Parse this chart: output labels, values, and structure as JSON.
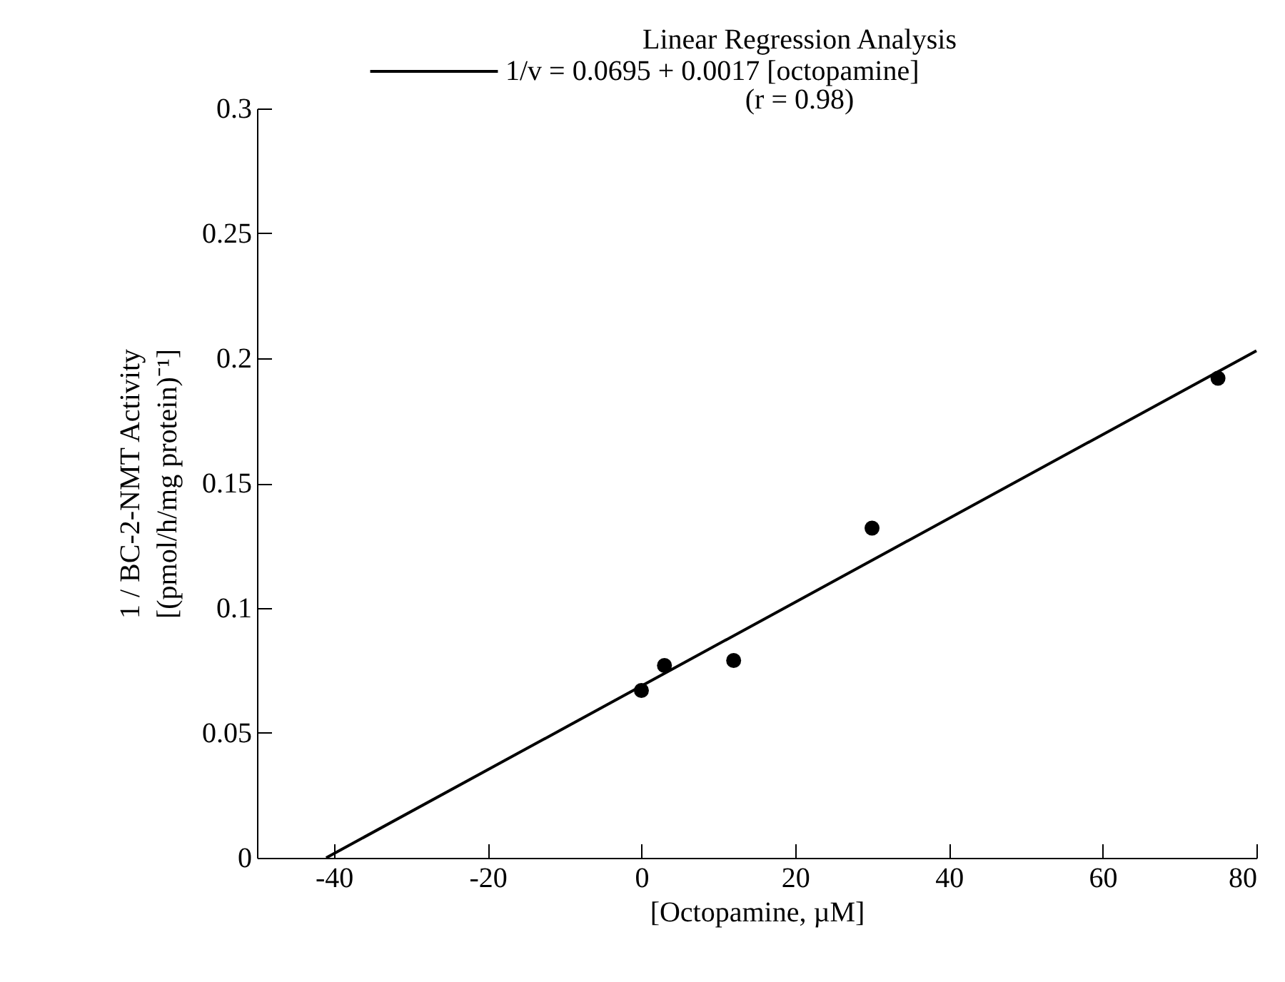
{
  "chart_data": {
    "type": "scatter",
    "title": "Linear Regression Analysis",
    "xlabel": "[Octopamine,  µM]",
    "ylabel": "1 / BC-2-NMT Activity\n[(pmol/h/mg   protein)⁻¹]",
    "annotations": [
      "(r = 0.98)"
    ],
    "xlim": [
      -50,
      80
    ],
    "xticks": [
      -40,
      -20,
      0,
      20,
      40,
      60,
      80
    ],
    "ylim": [
      0,
      0.3
    ],
    "yticks": [
      0,
      0.05,
      0.1,
      0.15,
      0.2,
      0.25,
      0.3
    ],
    "legend": "top",
    "series": [
      {
        "color": "#000000",
        "marker": "circle",
        "x": [
          0,
          3,
          12,
          30,
          75
        ],
        "values": [
          0.067,
          0.077,
          0.079,
          0.132,
          0.192
        ]
      },
      {
        "type": "line",
        "name": "1/v = 0.0695 + 0.0017 [octopamine]",
        "color": "#000000",
        "x": [
          -41,
          80
        ],
        "values": [
          0,
          0.203
        ]
      }
    ]
  }
}
